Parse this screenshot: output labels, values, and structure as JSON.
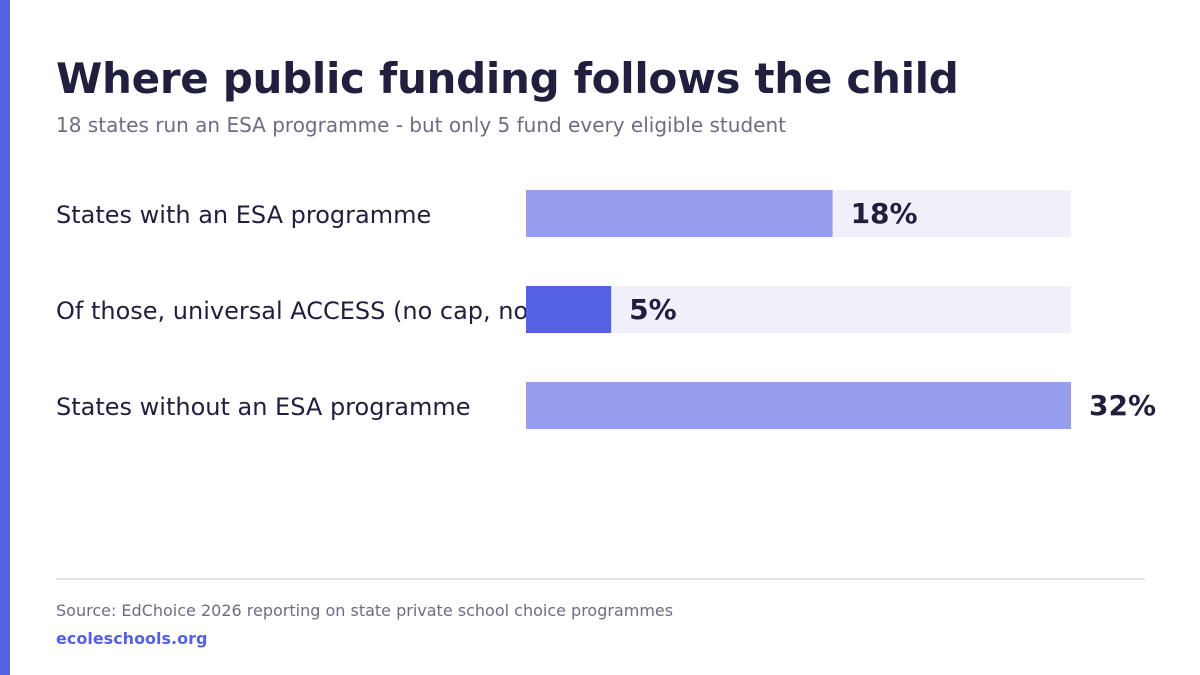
{
  "title": "Where public funding follows the child",
  "subtitle": "18 states run an ESA programme - but only 5 fund every eligible student",
  "source": "Source: EdChoice 2026 reporting on state private school choice programmes",
  "brand": "ecoleschools.org",
  "colors": {
    "accent": "#5561e3",
    "bar_light": "#969ded",
    "bar_highlight": "#5561e3",
    "track": "#f0f0fa",
    "text_dark": "#211f3e",
    "text_muted": "#6e6d7f"
  },
  "chart_data": {
    "type": "bar",
    "orientation": "horizontal",
    "title": "Where public funding follows the child",
    "categories": [
      "States with an ESA programme",
      "Of those, universal ACCESS (no cap, no means-test)",
      "States without an ESA programme"
    ],
    "values": [
      18,
      5,
      32
    ],
    "value_labels": [
      "18%",
      "5%",
      "32%"
    ],
    "highlight_index": 1,
    "xlim": [
      0,
      32
    ],
    "grid": false,
    "legend": "none"
  }
}
